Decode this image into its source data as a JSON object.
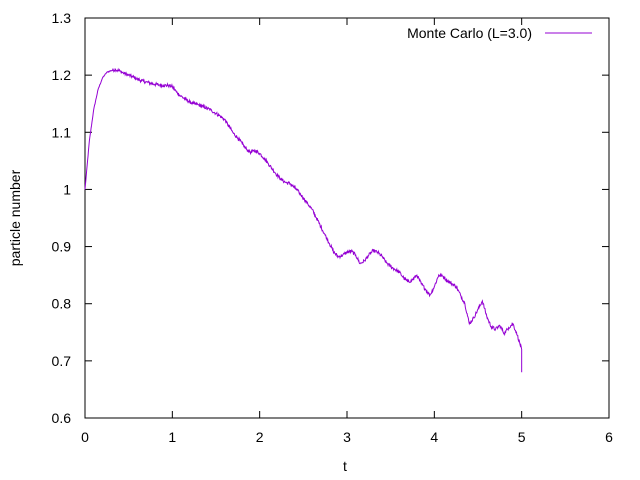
{
  "chart_data": {
    "type": "line",
    "title": "",
    "xlabel": "t",
    "ylabel": "particle number",
    "xlim": [
      0,
      6
    ],
    "ylim": [
      0.6,
      1.3
    ],
    "x_ticks": [
      0,
      1,
      2,
      3,
      4,
      5,
      6
    ],
    "x_tick_labels": [
      "0",
      "1",
      "2",
      "3",
      "4",
      "5",
      "6"
    ],
    "y_ticks": [
      0.6,
      0.7,
      0.8,
      0.9,
      1.0,
      1.1,
      1.2,
      1.3
    ],
    "y_tick_labels": [
      "0.6",
      "0.7",
      "0.8",
      "0.9",
      "1",
      "1.1",
      "1.2",
      "1.3"
    ],
    "grid": false,
    "legend_position": "top-right",
    "series": [
      {
        "name": "Monte Carlo (L=3.0)",
        "color": "#9400d3",
        "x": [
          0.0,
          0.05,
          0.1,
          0.15,
          0.2,
          0.25,
          0.3,
          0.35,
          0.4,
          0.45,
          0.5,
          0.55,
          0.6,
          0.65,
          0.7,
          0.75,
          0.8,
          0.85,
          0.9,
          0.95,
          1.0,
          1.05,
          1.1,
          1.15,
          1.2,
          1.25,
          1.3,
          1.35,
          1.4,
          1.45,
          1.5,
          1.55,
          1.6,
          1.65,
          1.7,
          1.75,
          1.8,
          1.85,
          1.9,
          1.95,
          2.0,
          2.05,
          2.1,
          2.15,
          2.2,
          2.25,
          2.3,
          2.35,
          2.4,
          2.45,
          2.5,
          2.55,
          2.6,
          2.65,
          2.7,
          2.75,
          2.8,
          2.85,
          2.9,
          2.95,
          3.0,
          3.05,
          3.1,
          3.15,
          3.2,
          3.25,
          3.3,
          3.35,
          3.4,
          3.45,
          3.5,
          3.55,
          3.6,
          3.65,
          3.7,
          3.75,
          3.8,
          3.85,
          3.9,
          3.95,
          4.0,
          4.05,
          4.1,
          4.15,
          4.2,
          4.25,
          4.3,
          4.35,
          4.4,
          4.45,
          4.5,
          4.55,
          4.6,
          4.65,
          4.7,
          4.75,
          4.8,
          4.85,
          4.9,
          4.95,
          5.0
        ],
        "y": [
          1.0,
          1.085,
          1.14,
          1.175,
          1.195,
          1.205,
          1.208,
          1.21,
          1.207,
          1.203,
          1.2,
          1.197,
          1.193,
          1.19,
          1.188,
          1.186,
          1.184,
          1.183,
          1.182,
          1.182,
          1.18,
          1.17,
          1.163,
          1.158,
          1.153,
          1.15,
          1.148,
          1.145,
          1.142,
          1.138,
          1.133,
          1.128,
          1.122,
          1.11,
          1.098,
          1.09,
          1.08,
          1.07,
          1.065,
          1.068,
          1.063,
          1.055,
          1.045,
          1.035,
          1.025,
          1.017,
          1.012,
          1.01,
          1.003,
          0.995,
          0.985,
          0.975,
          0.965,
          0.95,
          0.935,
          0.92,
          0.905,
          0.89,
          0.882,
          0.885,
          0.89,
          0.892,
          0.885,
          0.87,
          0.875,
          0.885,
          0.893,
          0.89,
          0.883,
          0.872,
          0.865,
          0.86,
          0.855,
          0.845,
          0.838,
          0.842,
          0.85,
          0.835,
          0.825,
          0.815,
          0.83,
          0.85,
          0.848,
          0.84,
          0.835,
          0.83,
          0.815,
          0.8,
          0.765,
          0.775,
          0.79,
          0.805,
          0.778,
          0.76,
          0.755,
          0.762,
          0.748,
          0.758,
          0.765,
          0.745,
          0.72
        ]
      }
    ]
  }
}
